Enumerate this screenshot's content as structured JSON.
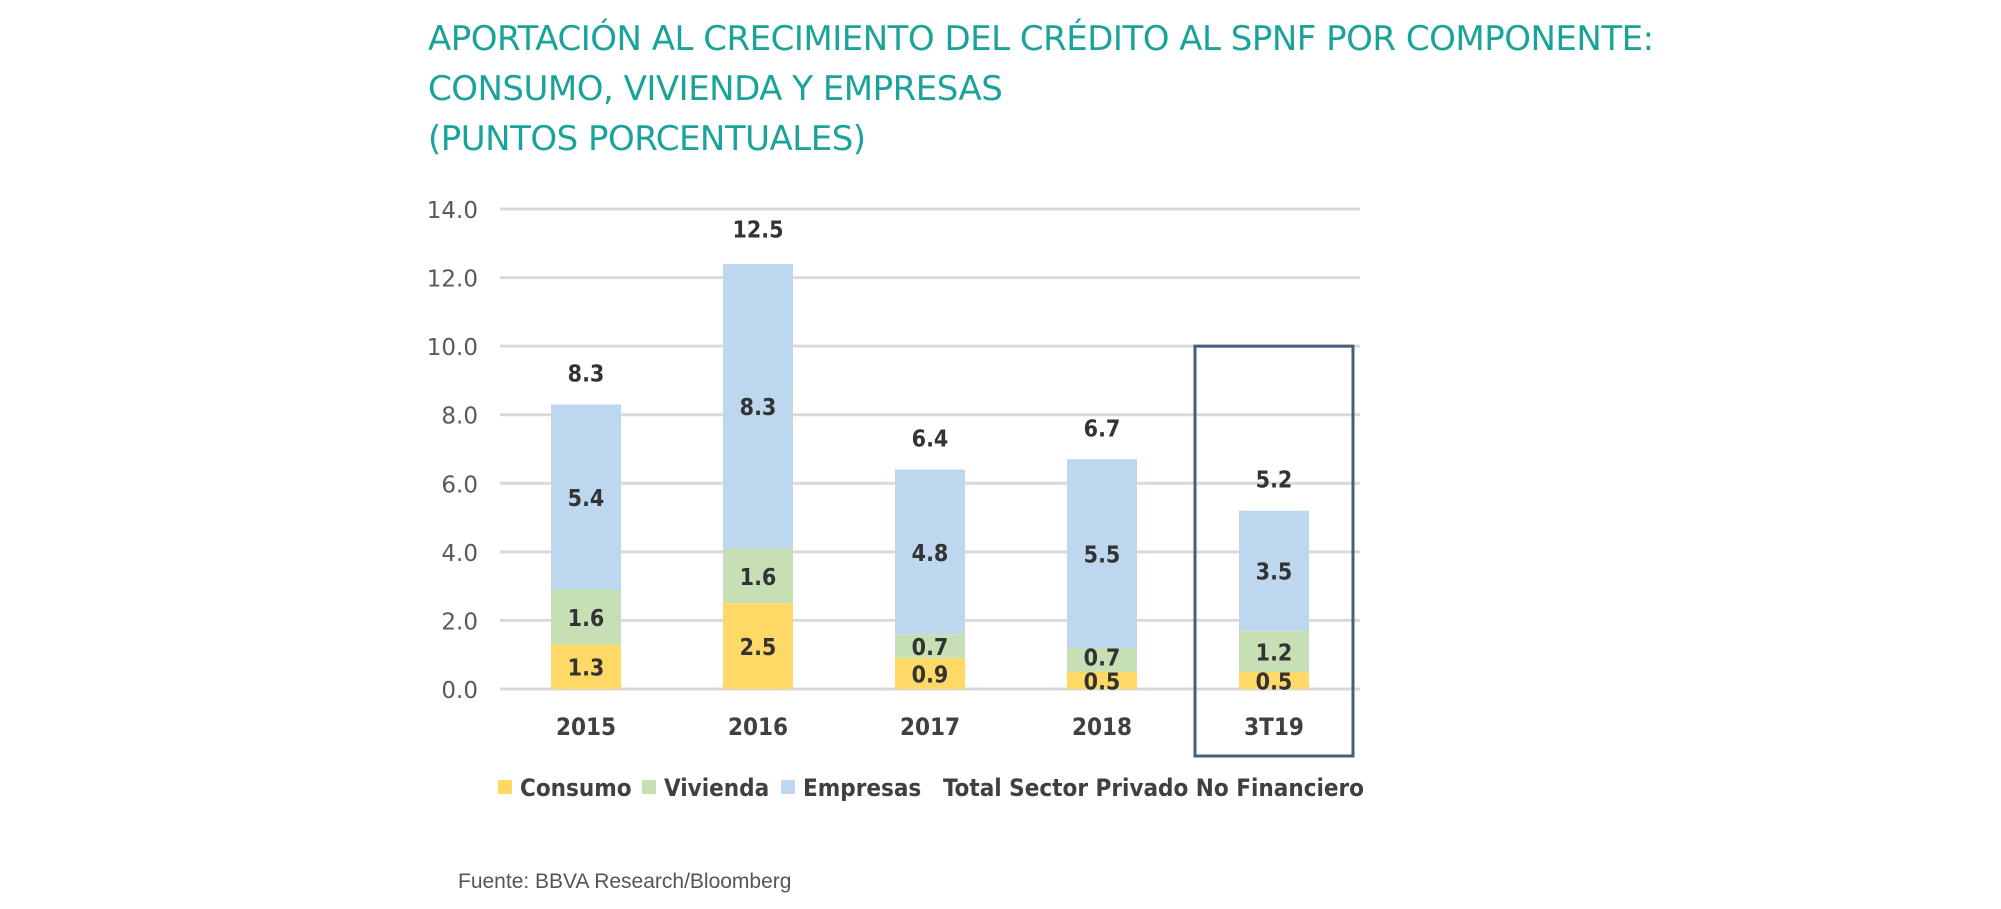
{
  "title": {
    "line1": "APORTACIÓN AL CRECIMIENTO DEL CRÉDITO AL SPNF POR COMPONENTE:",
    "line2": "CONSUMO, VIVIENDA Y EMPRESAS",
    "line3": "(PUNTOS PORCENTUALES)"
  },
  "source": "Fuente: BBVA Research/Bloomberg",
  "colors": {
    "title": "#1aa39a",
    "consumo": "#ffd966",
    "vivienda": "#c6dfb4",
    "empresas": "#bdd7ee",
    "grid": "#d9d9d9",
    "highlight_box": "#44607a",
    "label": "#333333"
  },
  "chart_data": {
    "type": "bar",
    "stacked": true,
    "categories": [
      "2015",
      "2016",
      "2017",
      "2018",
      "3T19"
    ],
    "series": [
      {
        "name": "Consumo",
        "key": "consumo",
        "values": [
          1.3,
          2.5,
          0.9,
          0.5,
          0.5
        ],
        "labels": [
          "1.3",
          "2.5",
          "0.9",
          "0.5",
          "0.5"
        ]
      },
      {
        "name": "Vivienda",
        "key": "vivienda",
        "values": [
          1.6,
          1.6,
          0.7,
          0.7,
          1.2
        ],
        "labels": [
          "1.6",
          "1.6",
          "0.7",
          "0.7",
          "1.2"
        ]
      },
      {
        "name": "Empresas",
        "key": "empresas",
        "values": [
          5.4,
          8.3,
          4.8,
          5.5,
          3.5
        ],
        "labels": [
          "5.4",
          "8.3",
          "4.8",
          "5.5",
          "3.5"
        ]
      }
    ],
    "totals": {
      "name": "Total Sector Privado No Financiero",
      "values": [
        8.3,
        12.5,
        6.4,
        6.7,
        5.2
      ],
      "labels": [
        "8.3",
        "12.5",
        "6.4",
        "6.7",
        "5.2"
      ]
    },
    "ylim": [
      0,
      14
    ],
    "yticks": [
      0,
      2,
      4,
      6,
      8,
      10,
      12,
      14
    ],
    "ytick_labels": [
      "0.0",
      "2.0",
      "4.0",
      "6.0",
      "8.0",
      "10.0",
      "12.0",
      "14.0"
    ],
    "legend": [
      "Consumo",
      "Vivienda",
      "Empresas",
      "Total Sector Privado No Financiero"
    ],
    "legend_position": "bottom",
    "highlighted_category": "3T19",
    "grid": true
  }
}
